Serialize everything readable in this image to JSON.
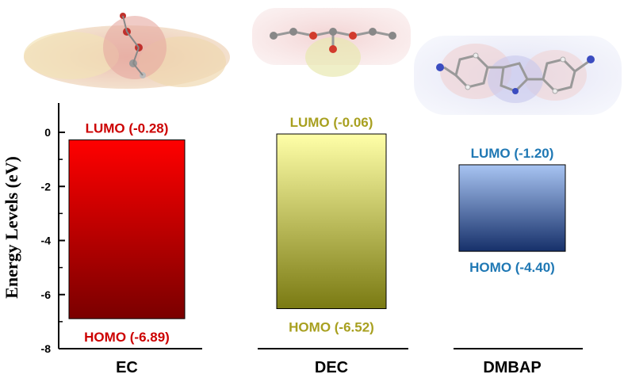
{
  "chart_data": {
    "type": "bar",
    "ylabel": "Energy Levels (eV)",
    "ylim": [
      -8,
      1
    ],
    "yticks": [
      0,
      -2,
      -4,
      -6,
      -8
    ],
    "ytick_labels": [
      "0",
      "-2",
      "-4",
      "-6",
      "-8"
    ],
    "categories": [
      "EC",
      "DEC",
      "DMBAP"
    ],
    "bars": [
      {
        "category": "EC",
        "lumo": -0.28,
        "homo": -6.89,
        "lumo_label": "LUMO (-0.28)",
        "homo_label": "HOMO (-6.89)",
        "color_top": "#ff0000",
        "color_bottom": "#7a0000",
        "label_color": "#cc0000"
      },
      {
        "category": "DEC",
        "lumo": -0.06,
        "homo": -6.52,
        "lumo_label": "LUMO (-0.06)",
        "homo_label": "HOMO (-6.52)",
        "color_top": "#ffffa8",
        "color_bottom": "#7a7a12",
        "label_color": "#a8a020"
      },
      {
        "category": "DMBAP",
        "lumo": -1.2,
        "homo": -4.4,
        "lumo_label": "LUMO (-1.20)",
        "homo_label": "HOMO (-4.40)",
        "color_top": "#a8c4f2",
        "color_bottom": "#16306a",
        "label_color": "#1f78b4"
      }
    ],
    "molecule_images": [
      "EC molecule",
      "DEC molecule",
      "DMBAP molecule"
    ]
  }
}
